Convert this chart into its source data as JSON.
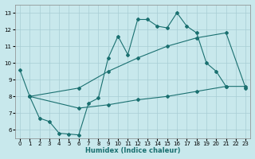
{
  "xlabel": "Humidex (Indice chaleur)",
  "xlim": [
    -0.5,
    23.5
  ],
  "ylim": [
    5.5,
    13.5
  ],
  "xticks": [
    0,
    1,
    2,
    3,
    4,
    5,
    6,
    7,
    8,
    9,
    10,
    11,
    12,
    13,
    14,
    15,
    16,
    17,
    18,
    19,
    20,
    21,
    22,
    23
  ],
  "yticks": [
    6,
    7,
    8,
    9,
    10,
    11,
    12,
    13
  ],
  "bg_color": "#c8e8ec",
  "grid_color": "#a8cdd4",
  "line_color": "#1a7070",
  "line1_x": [
    0,
    1,
    2,
    3,
    4,
    5,
    6,
    7,
    8,
    9,
    10,
    11,
    12,
    13,
    14,
    15,
    16,
    17,
    18,
    19,
    20,
    21
  ],
  "line1_y": [
    9.6,
    8.0,
    6.7,
    6.5,
    5.8,
    5.75,
    5.7,
    7.6,
    7.9,
    10.3,
    11.6,
    10.5,
    12.6,
    12.6,
    12.2,
    12.1,
    13.0,
    12.2,
    11.8,
    10.0,
    9.5,
    8.6
  ],
  "line2_x": [
    1,
    6,
    9,
    12,
    15,
    18,
    21,
    23
  ],
  "line2_y": [
    8.0,
    8.5,
    9.5,
    10.3,
    11.0,
    11.5,
    11.8,
    8.5
  ],
  "line3_x": [
    1,
    6,
    9,
    12,
    15,
    18,
    21,
    23
  ],
  "line3_y": [
    8.0,
    7.3,
    7.5,
    7.8,
    8.0,
    8.3,
    8.6,
    8.6
  ]
}
